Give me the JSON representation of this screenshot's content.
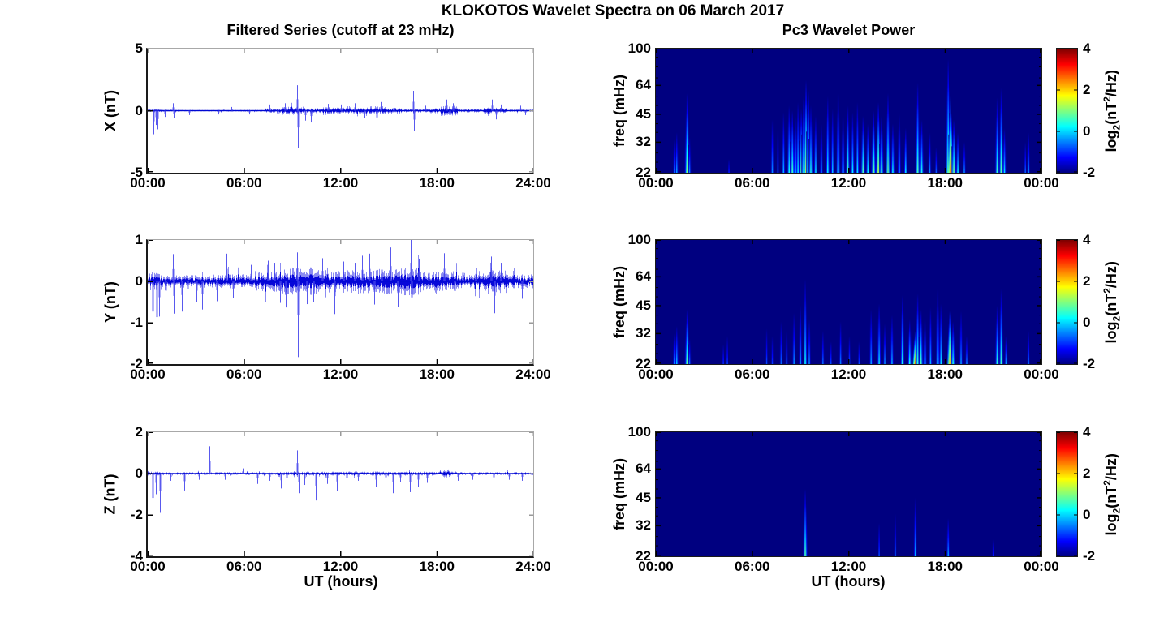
{
  "figure": {
    "title": "KLOKOTOS Wavelet Spectra on 06 March 2017",
    "left_column_title": "Filtered Series (cutoff at 23 mHz)",
    "right_column_title": "Pc3 Wavelet Power",
    "x_axis_label": "UT (hours)",
    "colorbar_label": {
      "prefix": "log",
      "sub": "2",
      "open": "(nT",
      "sup": "2",
      "close": "/Hz)"
    },
    "colors": {
      "line_blue": "#0000e0",
      "heatmap_background": "#000090",
      "colormap": "jet"
    }
  },
  "chart_data": [
    {
      "id": "x-filtered-series",
      "type": "line",
      "component": "X",
      "ylabel": "X (nT)",
      "ylim": [
        -5,
        5
      ],
      "yticks": [
        5,
        0,
        -5
      ],
      "xtick_labels": [
        "00:00",
        "06:00",
        "12:00",
        "18:00",
        "24:00"
      ],
      "x_hours": [
        0,
        24
      ],
      "seed": 11,
      "noise_envelope": [
        [
          0,
          0.9,
          0.085
        ],
        [
          0.9,
          2.1,
          0.055
        ],
        [
          2.1,
          4.0,
          0.04
        ],
        [
          4.0,
          7.3,
          0.05
        ],
        [
          7.3,
          8.3,
          0.13
        ],
        [
          8.3,
          9.8,
          0.21
        ],
        [
          9.8,
          10.9,
          0.13
        ],
        [
          10.9,
          13.0,
          0.18
        ],
        [
          13.0,
          13.7,
          0.14
        ],
        [
          13.7,
          14.9,
          0.23
        ],
        [
          14.9,
          15.8,
          0.16
        ],
        [
          15.8,
          17.5,
          0.095
        ],
        [
          17.5,
          18.2,
          0.13
        ],
        [
          18.2,
          19.3,
          0.27
        ],
        [
          19.3,
          20.9,
          0.09
        ],
        [
          20.9,
          22.3,
          0.16
        ],
        [
          22.3,
          24,
          0.06
        ]
      ],
      "spikes": [
        [
          0.33,
          -1.9
        ],
        [
          0.5,
          -1.15
        ],
        [
          0.63,
          -1.5
        ],
        [
          1.05,
          -0.5
        ],
        [
          1.55,
          0.6
        ],
        [
          1.62,
          -0.6
        ],
        [
          2.6,
          -0.35
        ],
        [
          4.4,
          -0.3
        ],
        [
          5.2,
          0.3
        ],
        [
          6.3,
          -0.3
        ],
        [
          7.6,
          0.5
        ],
        [
          8.1,
          -0.55
        ],
        [
          8.55,
          0.6
        ],
        [
          9.3,
          2.05
        ],
        [
          9.36,
          -3.0
        ],
        [
          9.8,
          -0.8
        ],
        [
          10.15,
          -0.95
        ],
        [
          11.2,
          0.55
        ],
        [
          12.0,
          0.5
        ],
        [
          12.9,
          0.6
        ],
        [
          13.5,
          -0.6
        ],
        [
          14.25,
          -1.2
        ],
        [
          14.5,
          0.7
        ],
        [
          15.3,
          0.5
        ],
        [
          16.5,
          1.6
        ],
        [
          16.56,
          -1.6
        ],
        [
          17.3,
          0.4
        ],
        [
          18.6,
          0.9
        ],
        [
          18.8,
          -0.8
        ],
        [
          19.0,
          0.6
        ],
        [
          21.4,
          0.9
        ],
        [
          21.7,
          -0.7
        ],
        [
          22.0,
          0.5
        ],
        [
          23.2,
          0.4
        ],
        [
          23.5,
          -0.35
        ]
      ]
    },
    {
      "id": "y-filtered-series",
      "type": "line",
      "component": "Y",
      "ylabel": "Y (nT)",
      "ylim": [
        -2,
        1
      ],
      "yticks": [
        1,
        0,
        -1,
        -2
      ],
      "xtick_labels": [
        "00:00",
        "06:00",
        "12:00",
        "18:00",
        "24:00"
      ],
      "x_hours": [
        0,
        24
      ],
      "seed": 23,
      "noise_envelope": [
        [
          0,
          0.9,
          0.14
        ],
        [
          0.9,
          4.0,
          0.1
        ],
        [
          4.0,
          6.5,
          0.11
        ],
        [
          6.5,
          8.3,
          0.16
        ],
        [
          8.3,
          10.5,
          0.22
        ],
        [
          10.5,
          12.8,
          0.18
        ],
        [
          12.8,
          15.0,
          0.2
        ],
        [
          15.0,
          17.0,
          0.22
        ],
        [
          17.0,
          19.5,
          0.16
        ],
        [
          19.5,
          21.0,
          0.13
        ],
        [
          21.0,
          22.3,
          0.18
        ],
        [
          22.3,
          24,
          0.11
        ]
      ],
      "spikes": [
        [
          0.3,
          -1.62
        ],
        [
          0.55,
          -1.92
        ],
        [
          0.72,
          -0.85
        ],
        [
          1.1,
          -0.5
        ],
        [
          1.58,
          0.66
        ],
        [
          1.64,
          -0.78
        ],
        [
          2.1,
          -0.73
        ],
        [
          2.5,
          -0.4
        ],
        [
          3.05,
          -0.5
        ],
        [
          3.4,
          -0.68
        ],
        [
          4.3,
          -0.48
        ],
        [
          4.9,
          0.67
        ],
        [
          5.3,
          -0.4
        ],
        [
          6.4,
          0.4
        ],
        [
          7.5,
          0.5
        ],
        [
          7.9,
          0.45
        ],
        [
          8.25,
          -0.52
        ],
        [
          8.6,
          -0.63
        ],
        [
          9.28,
          0.7
        ],
        [
          9.34,
          -1.83
        ],
        [
          9.9,
          -0.55
        ],
        [
          10.3,
          -0.5
        ],
        [
          10.85,
          0.56
        ],
        [
          11.6,
          -0.79
        ],
        [
          12.2,
          0.48
        ],
        [
          12.9,
          0.45
        ],
        [
          13.35,
          0.62
        ],
        [
          13.8,
          0.67
        ],
        [
          14.1,
          -0.56
        ],
        [
          14.55,
          0.63
        ],
        [
          15.1,
          0.82
        ],
        [
          15.55,
          -0.62
        ],
        [
          16.35,
          1.0
        ],
        [
          16.42,
          -0.86
        ],
        [
          16.9,
          0.55
        ],
        [
          17.5,
          0.45
        ],
        [
          18.45,
          0.68
        ],
        [
          19.1,
          -0.52
        ],
        [
          19.6,
          0.46
        ],
        [
          20.4,
          0.4
        ],
        [
          21.35,
          0.6
        ],
        [
          21.55,
          -0.77
        ],
        [
          22.0,
          0.45
        ],
        [
          23.3,
          -0.42
        ]
      ]
    },
    {
      "id": "z-filtered-series",
      "type": "line",
      "component": "Z",
      "ylabel": "Z (nT)",
      "ylim": [
        -4,
        2
      ],
      "yticks": [
        2,
        0,
        -2,
        -4
      ],
      "xtick_labels": [
        "00:00",
        "06:00",
        "12:00",
        "18:00",
        "24:00"
      ],
      "x_hours": [
        0,
        24
      ],
      "seed": 37,
      "noise_envelope": [
        [
          0,
          1.0,
          0.06
        ],
        [
          1.0,
          8.0,
          0.045
        ],
        [
          8.0,
          12.0,
          0.06
        ],
        [
          12.0,
          17.5,
          0.065
        ],
        [
          17.5,
          18.3,
          0.07
        ],
        [
          18.3,
          18.8,
          0.13
        ],
        [
          18.8,
          19.2,
          0.07
        ],
        [
          19.2,
          24,
          0.05
        ]
      ],
      "spikes": [
        [
          0.3,
          -2.62
        ],
        [
          0.5,
          -1.0
        ],
        [
          0.78,
          -1.9
        ],
        [
          1.4,
          -0.35
        ],
        [
          2.25,
          -0.82
        ],
        [
          3.2,
          -0.3
        ],
        [
          3.85,
          1.32
        ],
        [
          4.8,
          -0.3
        ],
        [
          5.9,
          0.25
        ],
        [
          6.8,
          -0.5
        ],
        [
          7.6,
          -0.35
        ],
        [
          8.3,
          -0.72
        ],
        [
          8.65,
          -0.5
        ],
        [
          9.3,
          1.12
        ],
        [
          9.4,
          -0.95
        ],
        [
          9.75,
          -0.55
        ],
        [
          10.45,
          -1.3
        ],
        [
          11.15,
          -0.5
        ],
        [
          11.75,
          -0.85
        ],
        [
          12.4,
          -0.45
        ],
        [
          13.1,
          -0.35
        ],
        [
          14.2,
          -0.65
        ],
        [
          14.8,
          -0.4
        ],
        [
          15.25,
          -0.95
        ],
        [
          15.7,
          -0.4
        ],
        [
          16.3,
          -0.9
        ],
        [
          16.85,
          -0.65
        ],
        [
          17.4,
          -0.45
        ],
        [
          19.3,
          -0.35
        ],
        [
          20.2,
          -0.3
        ],
        [
          21.5,
          -0.4
        ],
        [
          22.5,
          -0.3
        ],
        [
          23.3,
          -0.35
        ]
      ]
    },
    {
      "id": "x-wavelet-power",
      "type": "heatmap",
      "component": "X",
      "ylabel": "freq (mHz)",
      "yscale": "log",
      "ylim_mhz": [
        22,
        100
      ],
      "yticks": [
        100,
        64,
        45,
        32,
        22
      ],
      "xtick_labels": [
        "00:00",
        "06:00",
        "12:00",
        "18:00",
        "00:00"
      ],
      "x_hours": [
        0,
        24
      ],
      "clim": [
        -2,
        4
      ],
      "colorbar_ticks": [
        4,
        2,
        0,
        -2
      ],
      "streaks": [
        [
          1.15,
          33,
          -0.6
        ],
        [
          1.3,
          36,
          -0.3
        ],
        [
          1.95,
          58,
          1.1
        ],
        [
          2.1,
          34,
          -0.4
        ],
        [
          4.55,
          26,
          -1.1
        ],
        [
          7.25,
          42,
          -0.4
        ],
        [
          7.6,
          37,
          -0.7
        ],
        [
          7.95,
          46,
          -0.2
        ],
        [
          8.3,
          50,
          0.3
        ],
        [
          8.5,
          47,
          0.6
        ],
        [
          8.68,
          44,
          0.2
        ],
        [
          8.85,
          52,
          0.1
        ],
        [
          9.05,
          48,
          0.8
        ],
        [
          9.2,
          56,
          0.6
        ],
        [
          9.35,
          68,
          1.5
        ],
        [
          9.5,
          60,
          0.9
        ],
        [
          9.65,
          50,
          0.4
        ],
        [
          9.95,
          44,
          0.1
        ],
        [
          10.3,
          40,
          -0.3
        ],
        [
          10.7,
          56,
          0.2
        ],
        [
          11.0,
          48,
          -0.1
        ],
        [
          11.35,
          58,
          0.4
        ],
        [
          11.65,
          44,
          0.1
        ],
        [
          11.95,
          50,
          0.6
        ],
        [
          12.25,
          46,
          0.2
        ],
        [
          12.55,
          52,
          0.1
        ],
        [
          12.9,
          44,
          0.7
        ],
        [
          13.2,
          40,
          0.2
        ],
        [
          13.55,
          47,
          0.9
        ],
        [
          13.85,
          52,
          1.4
        ],
        [
          14.05,
          44,
          0.6
        ],
        [
          14.45,
          58,
          0.8
        ],
        [
          14.75,
          40,
          0.2
        ],
        [
          15.15,
          45,
          -0.1
        ],
        [
          15.55,
          38,
          0.1
        ],
        [
          16.3,
          66,
          0.7
        ],
        [
          16.55,
          42,
          0.4
        ],
        [
          17.05,
          36,
          -0.4
        ],
        [
          17.45,
          30,
          -0.7
        ],
        [
          18.2,
          88,
          1.1
        ],
        [
          18.35,
          56,
          2.8
        ],
        [
          18.55,
          42,
          0.9
        ],
        [
          18.8,
          36,
          0.2
        ],
        [
          19.2,
          32,
          -0.4
        ],
        [
          21.25,
          55,
          0.6
        ],
        [
          21.5,
          62,
          0.8
        ],
        [
          21.7,
          38,
          0.1
        ],
        [
          23.0,
          32,
          -0.7
        ],
        [
          23.2,
          36,
          -0.4
        ]
      ]
    },
    {
      "id": "y-wavelet-power",
      "type": "heatmap",
      "component": "Y",
      "ylabel": "freq (mHz)",
      "yscale": "log",
      "ylim_mhz": [
        22,
        100
      ],
      "yticks": [
        100,
        64,
        45,
        32,
        22
      ],
      "xtick_labels": [
        "00:00",
        "06:00",
        "12:00",
        "18:00",
        "00:00"
      ],
      "x_hours": [
        0,
        24
      ],
      "clim": [
        -2,
        4
      ],
      "colorbar_ticks": [
        4,
        2,
        0,
        -2
      ],
      "streaks": [
        [
          1.15,
          32,
          -0.4
        ],
        [
          1.3,
          35,
          -0.1
        ],
        [
          1.95,
          43,
          0.9
        ],
        [
          2.1,
          30,
          -0.5
        ],
        [
          4.2,
          28,
          -1.0
        ],
        [
          4.45,
          31,
          -0.9
        ],
        [
          6.9,
          34,
          -0.8
        ],
        [
          7.25,
          31,
          -0.9
        ],
        [
          7.8,
          37,
          -0.6
        ],
        [
          8.15,
          33,
          -0.6
        ],
        [
          8.6,
          41,
          -0.4
        ],
        [
          9.0,
          45,
          -0.3
        ],
        [
          9.3,
          62,
          0.3
        ],
        [
          9.55,
          38,
          -0.4
        ],
        [
          10.4,
          33,
          -0.6
        ],
        [
          10.9,
          29,
          -0.8
        ],
        [
          11.5,
          37,
          -0.5
        ],
        [
          12.05,
          31,
          -0.7
        ],
        [
          12.65,
          29,
          -0.8
        ],
        [
          13.4,
          43,
          -0.3
        ],
        [
          13.9,
          46,
          0.1
        ],
        [
          14.25,
          36,
          -0.4
        ],
        [
          14.7,
          40,
          -0.2
        ],
        [
          15.35,
          51,
          0.4
        ],
        [
          15.8,
          38,
          0.3
        ],
        [
          16.15,
          33,
          2.5
        ],
        [
          16.3,
          52,
          0.5
        ],
        [
          16.5,
          43,
          0.7
        ],
        [
          16.75,
          38,
          0.1
        ],
        [
          17.1,
          44,
          -0.2
        ],
        [
          17.55,
          55,
          0.3
        ],
        [
          17.75,
          46,
          0.1
        ],
        [
          18.3,
          42,
          2.1
        ],
        [
          18.5,
          37,
          0.4
        ],
        [
          19.0,
          42,
          -0.3
        ],
        [
          19.35,
          31,
          -0.5
        ],
        [
          21.25,
          45,
          0.5
        ],
        [
          21.5,
          55,
          0.6
        ],
        [
          21.8,
          31,
          -0.3
        ],
        [
          23.2,
          33,
          -0.6
        ]
      ]
    },
    {
      "id": "z-wavelet-power",
      "type": "heatmap",
      "component": "Z",
      "ylabel": "freq (mHz)",
      "yscale": "log",
      "ylim_mhz": [
        22,
        100
      ],
      "yticks": [
        100,
        64,
        45,
        32,
        22
      ],
      "xtick_labels": [
        "00:00",
        "06:00",
        "12:00",
        "18:00",
        "00:00"
      ],
      "x_hours": [
        0,
        24
      ],
      "clim": [
        -2,
        4
      ],
      "colorbar_ticks": [
        4,
        2,
        0,
        -2
      ],
      "streaks": [
        [
          9.3,
          50,
          0.7
        ],
        [
          13.9,
          33,
          -0.8
        ],
        [
          14.9,
          37,
          -0.6
        ],
        [
          16.15,
          45,
          -0.2
        ],
        [
          18.2,
          35,
          -0.3
        ],
        [
          21.0,
          27,
          -1.1
        ]
      ]
    }
  ]
}
